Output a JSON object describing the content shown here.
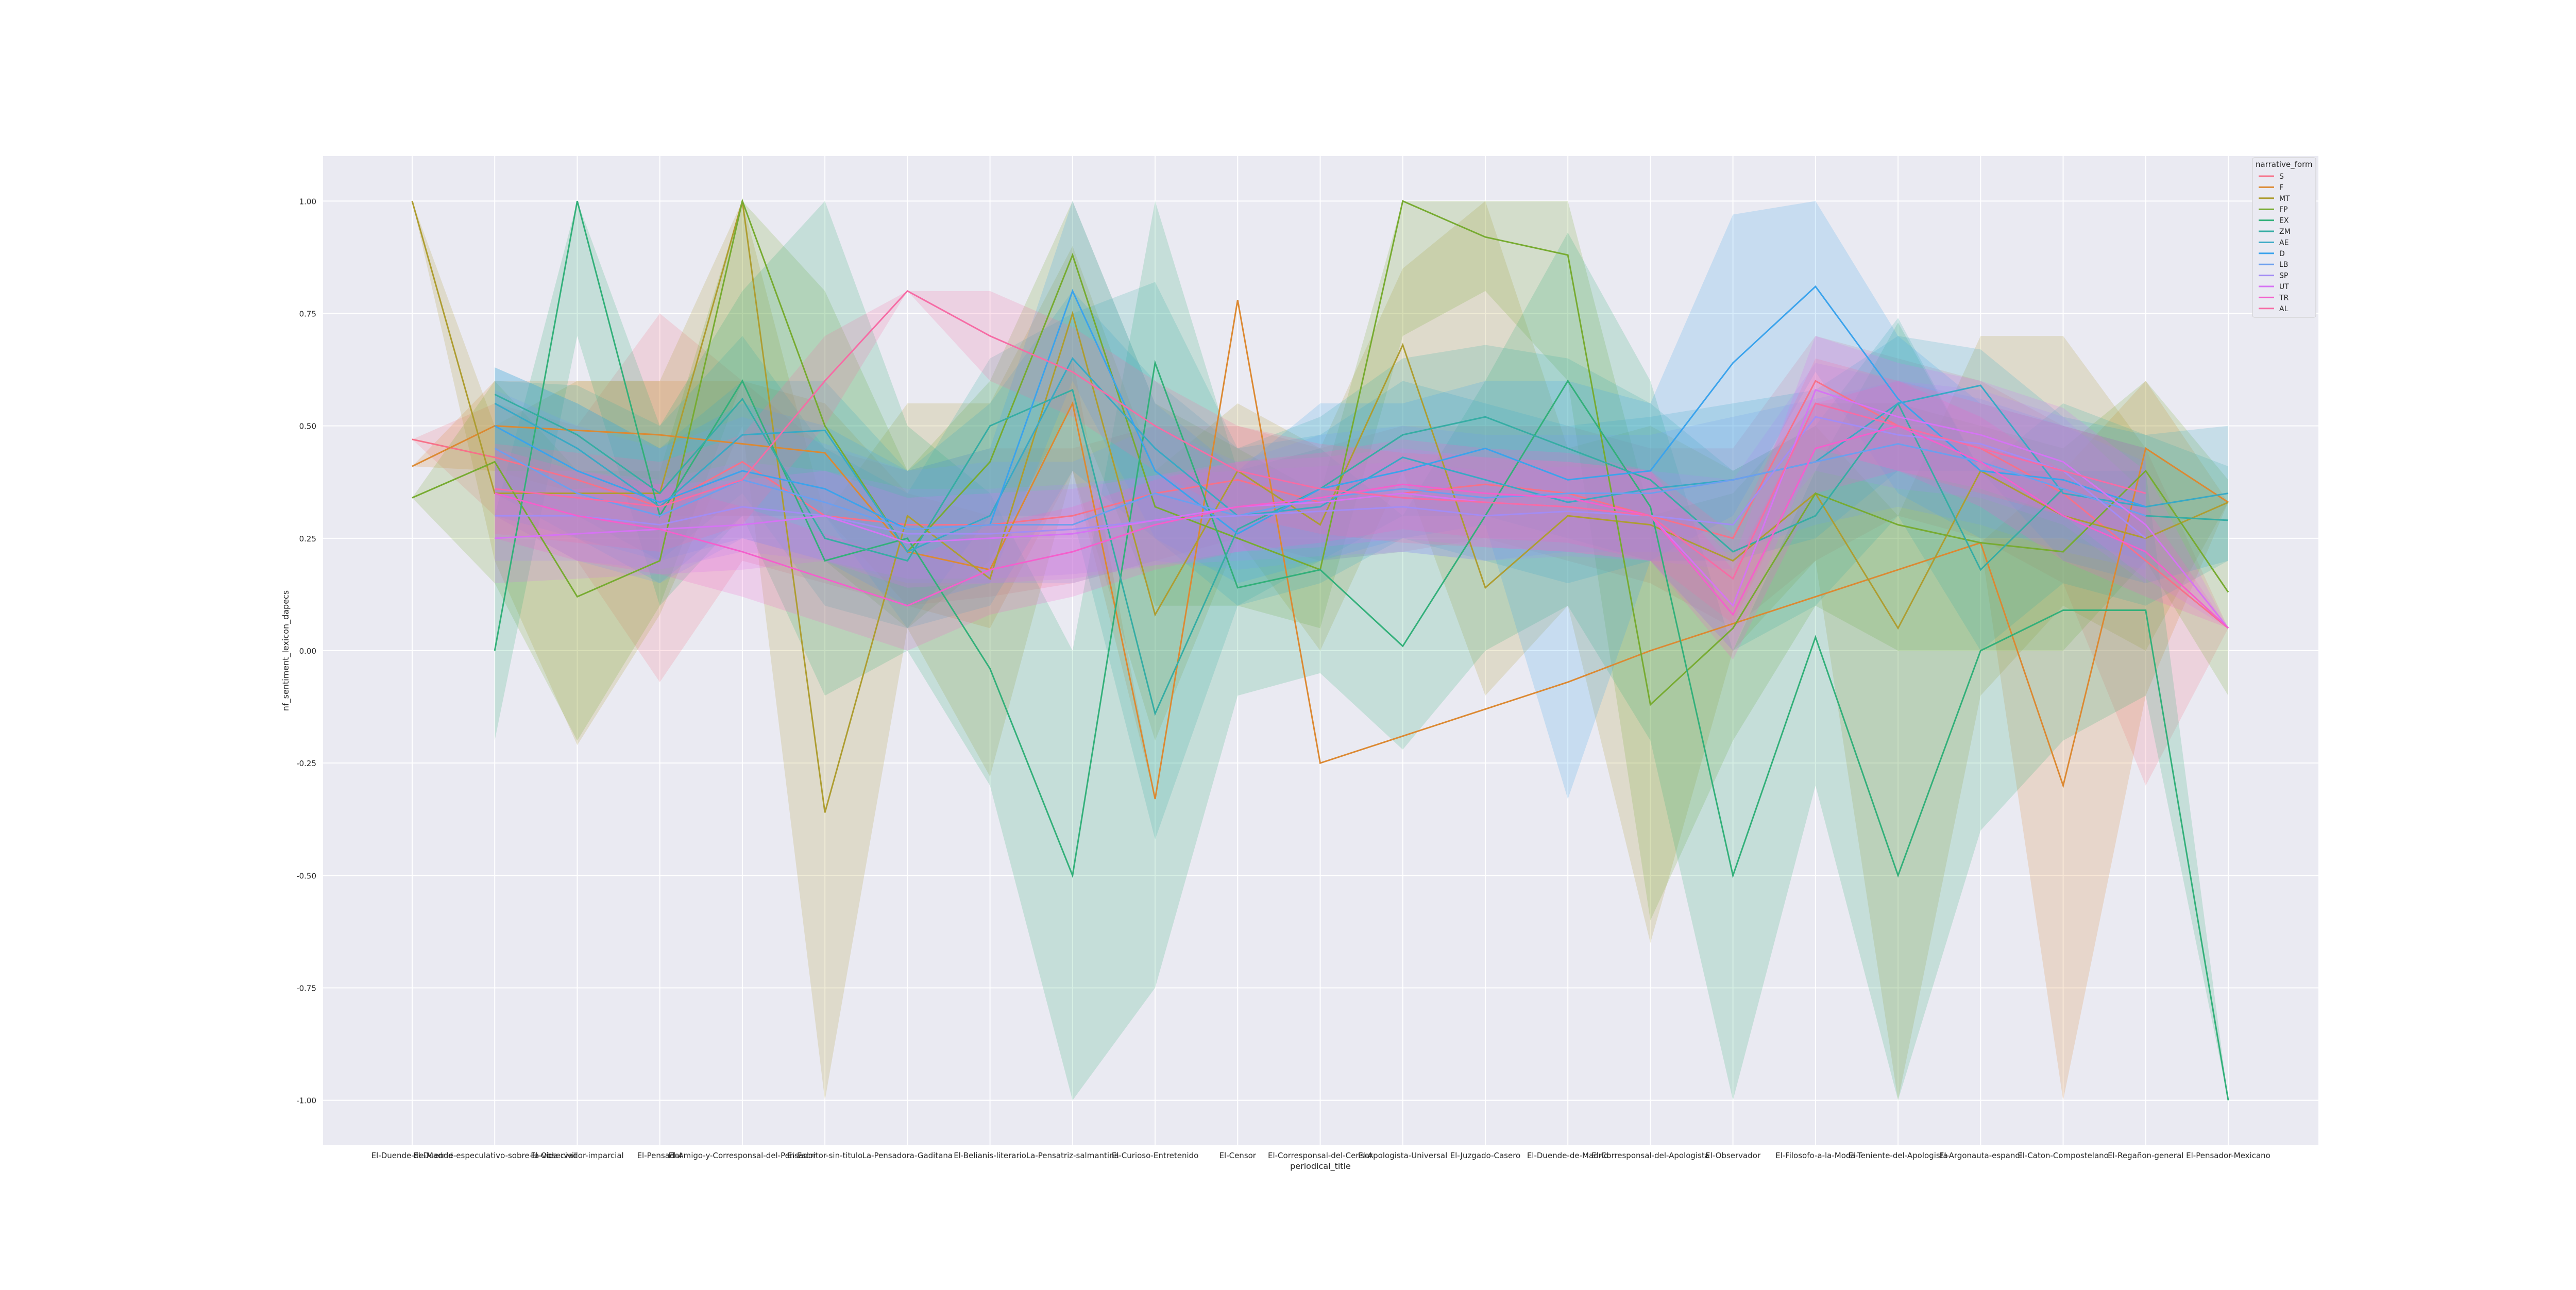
{
  "chart_data": {
    "type": "line",
    "title": "",
    "xlabel": "periodical_title",
    "ylabel": "nf_sentiment_lexicon_dapecs",
    "ylim": [
      -1.1,
      1.1
    ],
    "yticks": [
      -1.0,
      -0.75,
      -0.5,
      -0.25,
      0.0,
      0.25,
      0.5,
      0.75,
      1.0
    ],
    "grid": true,
    "legend": {
      "title": "narrative_form",
      "placement": "upper-right"
    },
    "categories": [
      "El-Duende-de-Madrid",
      "El-Duende-especulativo-sobre-la-vida-civil",
      "El-Observador-imparcial",
      "El-Pensador",
      "El-Amigo-y-Corresponsal-del-Pensador",
      "El-Escritor-sin-titulo",
      "La-Pensadora-Gaditana",
      "El-Belianis-literario",
      "La-Pensatriz-salmantina",
      "El-Curioso-Entretenido",
      "El-Censor",
      "El-Corresponsal-del-Censor",
      "El-Apologista-Universal",
      "El-Juzgado-Casero",
      "El-Duende-de-Madrid",
      "El-Corresponsal-del-Apologista",
      "El-Observador",
      "El-Filosofo-a-la-Moda",
      "El-Teniente-del-Apologista",
      "El-Argonauta-espanol",
      "El-Caton-Compostelano",
      "El-Regañon-general",
      "El-Pensador-Mexicano"
    ],
    "series": [
      {
        "name": "S",
        "color": "#f77189",
        "values": [
          0.47,
          0.43,
          0.38,
          0.32,
          0.42,
          0.3,
          0.28,
          0.28,
          0.3,
          0.35,
          0.38,
          0.33,
          0.35,
          0.37,
          0.35,
          0.3,
          0.25,
          0.6,
          0.5,
          0.45,
          0.35,
          0.2,
          0.05
        ],
        "ci_low": [
          0.47,
          0.3,
          0.2,
          -0.07,
          0.2,
          0.15,
          0.1,
          0.12,
          0.15,
          0.2,
          0.25,
          0.2,
          0.22,
          0.25,
          0.2,
          0.15,
          0.05,
          0.2,
          0.3,
          0.25,
          0.15,
          -0.3,
          0.05
        ],
        "ci_high": [
          0.47,
          0.55,
          0.5,
          0.75,
          0.6,
          0.45,
          0.4,
          0.45,
          0.45,
          0.5,
          0.5,
          0.45,
          0.5,
          0.5,
          0.5,
          0.45,
          0.45,
          0.7,
          0.65,
          0.6,
          0.5,
          0.45,
          0.05
        ]
      },
      {
        "name": "F",
        "color": "#dc8932",
        "values": [
          0.41,
          0.5,
          0.49,
          0.48,
          0.46,
          0.44,
          0.22,
          0.18,
          0.55,
          -0.33,
          0.78,
          -0.25,
          -0.19,
          -0.13,
          -0.07,
          0.0,
          0.06,
          0.12,
          0.18,
          0.24,
          -0.3,
          0.45,
          0.33
        ],
        "ci_low": [
          0.41,
          0.4,
          0.35,
          0.3,
          0.3,
          0.3,
          0.1,
          0.05,
          0.4,
          -0.33,
          0.78,
          -0.25,
          -0.19,
          -0.13,
          -0.07,
          0.0,
          0.06,
          0.12,
          0.18,
          0.24,
          -1.0,
          -0.1,
          0.33
        ],
        "ci_high": [
          0.41,
          0.6,
          0.6,
          0.6,
          0.6,
          0.55,
          0.35,
          0.3,
          0.65,
          -0.33,
          0.78,
          -0.25,
          -0.19,
          -0.13,
          -0.07,
          0.0,
          0.06,
          0.12,
          0.18,
          0.24,
          0.4,
          0.6,
          0.33
        ]
      },
      {
        "name": "MT",
        "color": "#ae9d31",
        "values": [
          1.0,
          0.35,
          0.35,
          0.35,
          1.0,
          -0.36,
          0.3,
          0.16,
          0.75,
          0.08,
          0.4,
          0.28,
          0.68,
          0.14,
          0.3,
          0.28,
          0.2,
          0.35,
          0.05,
          0.4,
          0.3,
          0.25,
          0.33
        ],
        "ci_low": [
          1.0,
          0.2,
          -0.21,
          0.08,
          0.5,
          -1.0,
          0.05,
          -0.28,
          0.4,
          -0.2,
          0.25,
          0.0,
          0.4,
          -0.1,
          0.1,
          -0.65,
          0.0,
          0.2,
          -1.0,
          -0.1,
          0.1,
          0.0,
          0.33
        ],
        "ci_high": [
          1.0,
          0.5,
          0.6,
          0.6,
          1.0,
          0.3,
          0.55,
          0.55,
          0.9,
          0.4,
          0.55,
          0.45,
          0.85,
          1.0,
          0.45,
          0.5,
          0.4,
          0.5,
          0.3,
          0.7,
          0.7,
          0.45,
          0.33
        ]
      },
      {
        "name": "FP",
        "color": "#77ab31",
        "values": [
          0.34,
          0.42,
          0.12,
          0.2,
          1.0,
          0.5,
          0.22,
          0.42,
          0.88,
          0.32,
          0.25,
          0.18,
          1.0,
          0.92,
          0.88,
          -0.12,
          0.05,
          0.35,
          0.28,
          0.24,
          0.22,
          0.4,
          0.13
        ],
        "ci_low": [
          0.34,
          0.15,
          -0.2,
          0.1,
          0.6,
          0.2,
          0.05,
          0.2,
          0.55,
          0.1,
          0.1,
          0.05,
          0.7,
          0.8,
          0.6,
          -0.6,
          -0.2,
          0.1,
          0.0,
          0.0,
          0.0,
          0.2,
          -0.1
        ],
        "ci_high": [
          0.34,
          0.6,
          0.4,
          0.4,
          1.0,
          0.8,
          0.4,
          0.6,
          1.0,
          0.55,
          0.45,
          0.35,
          1.0,
          1.0,
          1.0,
          0.3,
          0.35,
          0.55,
          0.55,
          0.5,
          0.45,
          0.6,
          0.38
        ]
      },
      {
        "name": "EX",
        "color": "#33b07a",
        "values": [
          null,
          0.0,
          1.0,
          0.3,
          0.6,
          0.2,
          0.25,
          -0.04,
          -0.5,
          0.64,
          0.14,
          0.18,
          0.01,
          0.3,
          0.6,
          0.32,
          -0.5,
          0.03,
          -0.5,
          0.0,
          0.09,
          0.09,
          -1.0
        ],
        "ci_low": [
          null,
          -0.2,
          0.7,
          0.1,
          0.3,
          -0.1,
          0.0,
          -0.3,
          -1.0,
          -0.75,
          -0.1,
          -0.05,
          -0.22,
          0.0,
          0.1,
          -0.2,
          -1.0,
          -0.3,
          -1.0,
          -0.4,
          -0.2,
          -0.1,
          -1.0
        ],
        "ci_high": [
          null,
          0.3,
          1.0,
          0.5,
          0.8,
          1.0,
          0.5,
          0.35,
          0.0,
          1.0,
          0.4,
          0.45,
          0.3,
          0.6,
          0.93,
          0.6,
          0.0,
          0.4,
          0.73,
          0.4,
          0.4,
          0.4,
          -1.0
        ]
      },
      {
        "name": "ZM",
        "color": "#36ada4",
        "values": [
          null,
          0.57,
          0.48,
          0.35,
          0.56,
          0.25,
          0.2,
          0.5,
          0.58,
          -0.14,
          0.27,
          0.36,
          0.48,
          0.52,
          0.45,
          0.38,
          0.22,
          0.3,
          0.55,
          0.18,
          0.36,
          0.3,
          0.29
        ],
        "ci_low": [
          null,
          0.35,
          0.3,
          0.2,
          0.35,
          0.1,
          0.05,
          0.3,
          0.3,
          -0.42,
          0.1,
          0.2,
          0.3,
          0.3,
          0.25,
          0.2,
          0.0,
          0.1,
          0.3,
          0.0,
          0.15,
          0.1,
          0.2
        ],
        "ci_high": [
          null,
          0.6,
          0.59,
          0.5,
          0.7,
          0.45,
          0.35,
          0.65,
          0.75,
          0.82,
          0.45,
          0.52,
          0.65,
          0.68,
          0.65,
          0.55,
          0.4,
          0.5,
          0.74,
          0.4,
          0.55,
          0.48,
          0.41
        ]
      },
      {
        "name": "AE",
        "color": "#38a9c5",
        "values": [
          null,
          0.55,
          0.45,
          0.32,
          0.48,
          0.49,
          0.22,
          0.3,
          0.65,
          0.45,
          0.3,
          0.32,
          0.43,
          0.38,
          0.33,
          0.36,
          0.38,
          0.42,
          0.55,
          0.59,
          0.35,
          0.32,
          0.35
        ],
        "ci_low": [
          null,
          0.35,
          0.25,
          0.15,
          0.3,
          0.3,
          0.05,
          0.1,
          0.4,
          0.25,
          0.1,
          0.15,
          0.25,
          0.2,
          0.15,
          0.2,
          0.2,
          0.25,
          0.4,
          0.4,
          0.2,
          0.15,
          0.2
        ],
        "ci_high": [
          null,
          0.63,
          0.55,
          0.45,
          0.6,
          0.6,
          0.4,
          0.55,
          0.8,
          0.6,
          0.45,
          0.48,
          0.6,
          0.55,
          0.5,
          0.52,
          0.55,
          0.58,
          0.7,
          0.67,
          0.52,
          0.48,
          0.5
        ]
      },
      {
        "name": "D",
        "color": "#3ba3ec",
        "values": [
          null,
          0.5,
          0.4,
          0.33,
          0.4,
          0.36,
          0.27,
          0.28,
          0.8,
          0.4,
          0.26,
          0.36,
          0.4,
          0.45,
          0.38,
          0.4,
          0.64,
          0.81,
          0.56,
          0.4,
          0.38,
          0.32,
          null
        ],
        "ci_low": [
          null,
          0.3,
          0.25,
          0.2,
          0.25,
          0.2,
          0.1,
          0.15,
          0.6,
          0.25,
          0.15,
          0.2,
          0.25,
          0.28,
          -0.33,
          0.2,
          0.3,
          0.62,
          0.35,
          0.25,
          0.25,
          0.2,
          null
        ],
        "ci_high": [
          null,
          0.63,
          0.55,
          0.45,
          0.55,
          0.5,
          0.4,
          0.45,
          1.0,
          0.55,
          0.4,
          0.55,
          0.55,
          0.6,
          0.6,
          0.55,
          0.97,
          1.0,
          0.7,
          0.55,
          0.5,
          0.45,
          null
        ]
      },
      {
        "name": "LB",
        "color": "#6c9fee",
        "values": [
          null,
          0.45,
          0.35,
          0.3,
          0.38,
          0.33,
          0.27,
          0.28,
          0.28,
          0.35,
          0.3,
          0.34,
          0.36,
          0.34,
          0.35,
          0.35,
          0.38,
          0.42,
          0.46,
          0.42,
          0.36,
          0.3,
          null
        ],
        "ci_low": [
          null,
          0.3,
          0.2,
          0.15,
          0.25,
          0.2,
          0.15,
          0.15,
          0.15,
          0.2,
          0.18,
          0.2,
          0.22,
          0.2,
          0.22,
          0.22,
          0.22,
          0.28,
          0.32,
          0.28,
          0.22,
          0.18,
          null
        ],
        "ci_high": [
          null,
          0.58,
          0.5,
          0.45,
          0.52,
          0.46,
          0.4,
          0.42,
          0.42,
          0.5,
          0.42,
          0.48,
          0.5,
          0.48,
          0.48,
          0.48,
          0.52,
          0.56,
          0.6,
          0.56,
          0.5,
          0.42,
          null
        ]
      },
      {
        "name": "SP",
        "color": "#a38cf4",
        "values": [
          null,
          0.3,
          0.3,
          0.28,
          0.32,
          0.3,
          0.26,
          0.26,
          0.27,
          0.29,
          0.3,
          0.31,
          0.32,
          0.3,
          0.31,
          0.3,
          0.28,
          0.52,
          0.48,
          0.46,
          0.4,
          0.25,
          null
        ],
        "ci_low": [
          null,
          0.2,
          0.2,
          0.18,
          0.22,
          0.2,
          0.16,
          0.16,
          0.17,
          0.19,
          0.2,
          0.21,
          0.22,
          0.2,
          0.21,
          0.2,
          0.18,
          0.4,
          0.36,
          0.34,
          0.28,
          0.15,
          null
        ],
        "ci_high": [
          null,
          0.4,
          0.4,
          0.38,
          0.42,
          0.4,
          0.36,
          0.36,
          0.37,
          0.39,
          0.4,
          0.41,
          0.42,
          0.4,
          0.41,
          0.4,
          0.38,
          0.64,
          0.6,
          0.58,
          0.52,
          0.35,
          null
        ]
      },
      {
        "name": "UT",
        "color": "#d673f4",
        "values": [
          null,
          0.25,
          0.26,
          0.27,
          0.28,
          0.3,
          0.24,
          0.25,
          0.26,
          0.29,
          0.32,
          0.33,
          0.35,
          0.33,
          0.32,
          0.3,
          0.1,
          0.58,
          0.52,
          0.48,
          0.42,
          0.28,
          0.05
        ],
        "ci_low": [
          null,
          0.15,
          0.16,
          0.17,
          0.18,
          0.2,
          0.14,
          0.15,
          0.16,
          0.19,
          0.22,
          0.23,
          0.25,
          0.23,
          0.22,
          0.2,
          0.0,
          0.45,
          0.4,
          0.36,
          0.3,
          0.16,
          0.05
        ],
        "ci_high": [
          null,
          0.35,
          0.36,
          0.37,
          0.38,
          0.4,
          0.34,
          0.35,
          0.36,
          0.39,
          0.42,
          0.43,
          0.45,
          0.43,
          0.42,
          0.4,
          0.2,
          0.7,
          0.64,
          0.6,
          0.54,
          0.4,
          0.05
        ]
      },
      {
        "name": "TR",
        "color": "#f45fcc",
        "values": [
          null,
          0.35,
          0.3,
          0.27,
          0.22,
          0.16,
          0.1,
          0.18,
          0.22,
          0.28,
          0.32,
          0.34,
          0.37,
          0.35,
          0.34,
          0.3,
          0.08,
          0.45,
          0.5,
          0.42,
          0.3,
          0.22,
          0.05
        ],
        "ci_low": [
          null,
          0.25,
          0.2,
          0.17,
          0.12,
          0.06,
          0.0,
          0.08,
          0.12,
          0.18,
          0.22,
          0.24,
          0.27,
          0.25,
          0.24,
          0.2,
          -0.02,
          0.35,
          0.4,
          0.32,
          0.2,
          0.12,
          0.05
        ],
        "ci_high": [
          null,
          0.45,
          0.4,
          0.37,
          0.32,
          0.26,
          0.2,
          0.28,
          0.32,
          0.38,
          0.42,
          0.44,
          0.47,
          0.45,
          0.44,
          0.4,
          0.18,
          0.55,
          0.6,
          0.52,
          0.4,
          0.32,
          0.05
        ]
      },
      {
        "name": "AL",
        "color": "#f66ca5",
        "values": [
          null,
          0.36,
          0.34,
          0.32,
          0.38,
          0.6,
          0.8,
          0.7,
          0.62,
          0.5,
          0.4,
          0.36,
          0.34,
          0.33,
          0.32,
          0.3,
          0.16,
          0.55,
          0.5,
          0.45,
          0.4,
          0.35,
          null
        ],
        "ci_low": [
          null,
          0.26,
          0.24,
          0.22,
          0.28,
          0.5,
          0.8,
          0.6,
          0.52,
          0.4,
          0.3,
          0.26,
          0.24,
          0.23,
          0.22,
          0.2,
          0.06,
          0.45,
          0.4,
          0.35,
          0.3,
          0.25,
          null
        ],
        "ci_high": [
          null,
          0.46,
          0.44,
          0.42,
          0.48,
          0.7,
          0.8,
          0.8,
          0.72,
          0.6,
          0.5,
          0.46,
          0.44,
          0.43,
          0.42,
          0.4,
          0.26,
          0.65,
          0.6,
          0.55,
          0.5,
          0.45,
          null
        ]
      }
    ]
  }
}
